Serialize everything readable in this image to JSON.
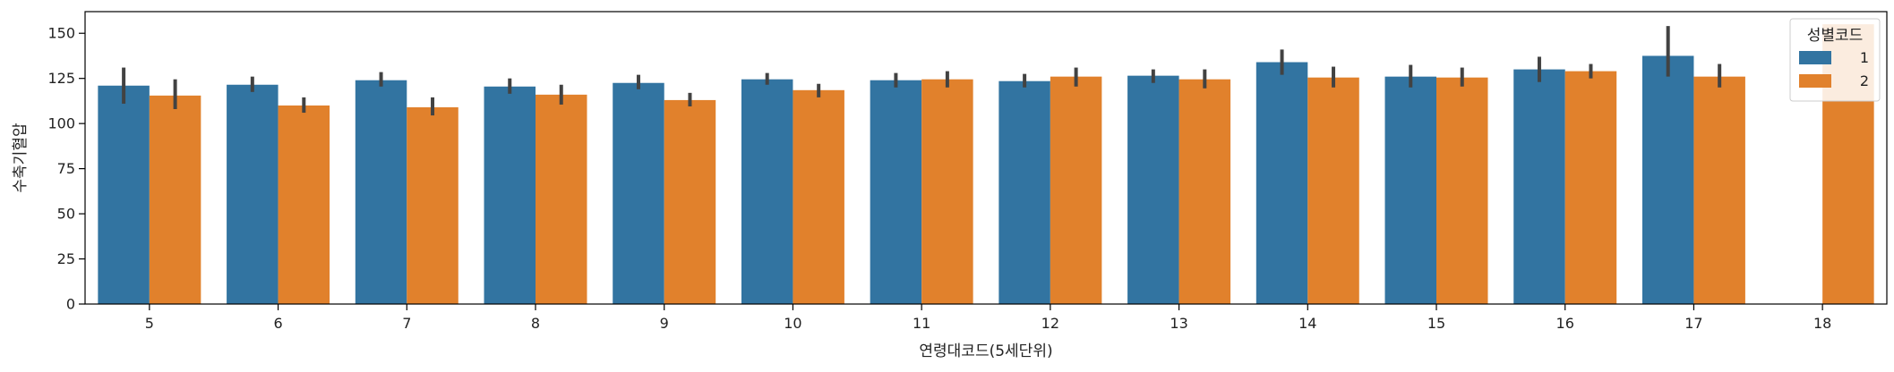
{
  "chart_data": {
    "type": "bar",
    "xlabel": "연령대코드(5세단위)",
    "ylabel": "수축기혈압",
    "categories": [
      "5",
      "6",
      "7",
      "8",
      "9",
      "10",
      "11",
      "12",
      "13",
      "14",
      "15",
      "16",
      "17",
      "18"
    ],
    "ylim": [
      0,
      162
    ],
    "yticks": [
      0,
      25,
      50,
      75,
      100,
      125,
      150
    ],
    "grid": false,
    "legend": {
      "title": "성별코드",
      "placement": "top-right"
    },
    "series": [
      {
        "name": "1",
        "color": "#3274a1",
        "values": [
          121,
          121.5,
          124,
          120.5,
          122.5,
          124.5,
          124,
          123.5,
          126.5,
          134,
          126,
          130,
          137.5,
          null
        ],
        "err_low": [
          111,
          117.5,
          120.5,
          116.5,
          119,
          121.5,
          120,
          120,
          122.5,
          127,
          120,
          123,
          126,
          null
        ],
        "err_high": [
          131,
          126,
          128.5,
          125,
          127,
          128,
          128,
          127.5,
          130,
          141,
          132.5,
          137,
          154,
          null
        ]
      },
      {
        "name": "2",
        "color": "#e1812c",
        "values": [
          115.5,
          110,
          109,
          116,
          113,
          118.5,
          124.5,
          126,
          124.5,
          125.5,
          125.5,
          129,
          126,
          155
        ],
        "err_low": [
          108,
          106,
          104.5,
          110.5,
          109.5,
          114.5,
          120,
          120.5,
          119.5,
          120,
          120.5,
          125,
          120,
          null
        ],
        "err_high": [
          124.5,
          114.5,
          114.5,
          121.5,
          117,
          122,
          129,
          131,
          130,
          131.5,
          131,
          133,
          133,
          null
        ]
      }
    ]
  }
}
